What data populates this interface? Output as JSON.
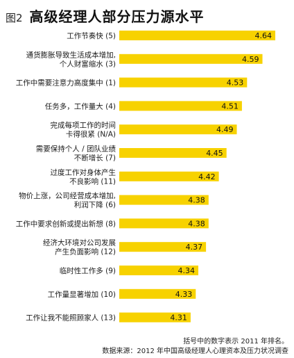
{
  "figure": {
    "label": "图2",
    "title": "高级经理人部分压力源水平"
  },
  "chart_data": {
    "type": "bar",
    "orientation": "horizontal",
    "title": "高级经理人部分压力源水平",
    "bar_color": "#f7d200",
    "categories": [
      {
        "lines": [
          "工作节奏快"
        ],
        "rank": "(5)"
      },
      {
        "lines": [
          "通货膨胀导致生活成本增加,",
          "个人财富缩水"
        ],
        "rank": "(3)"
      },
      {
        "lines": [
          "工作中需要注意力高度集中"
        ],
        "rank": "(1)"
      },
      {
        "lines": [
          "任务多，工作量大"
        ],
        "rank": "(4)"
      },
      {
        "lines": [
          "完成每项工作的时间",
          "卡得很紧"
        ],
        "rank": "(N/A)"
      },
      {
        "lines": [
          "需要保持个人 / 团队业绩",
          "不断增长"
        ],
        "rank": "(7)"
      },
      {
        "lines": [
          "过度工作对身体产生",
          "不良影响"
        ],
        "rank": "(11)"
      },
      {
        "lines": [
          "物价上涨，公司经营成本增加,",
          "利润下降"
        ],
        "rank": "(6)"
      },
      {
        "lines": [
          "工作中要求创新或提出新想"
        ],
        "rank": "(8)"
      },
      {
        "lines": [
          "经济大环境对公司发展",
          "产生负面影响"
        ],
        "rank": "(12)"
      },
      {
        "lines": [
          "临时性工作多"
        ],
        "rank": "(9)"
      },
      {
        "lines": [
          "工作量显著增加"
        ],
        "rank": "(10)"
      },
      {
        "lines": [
          "工作让我不能照顾家人"
        ],
        "rank": "(13)"
      }
    ],
    "values": [
      4.64,
      4.59,
      4.53,
      4.51,
      4.49,
      4.45,
      4.42,
      4.38,
      4.38,
      4.37,
      4.34,
      4.33,
      4.31
    ],
    "value_labels": [
      "4.64",
      "4.59",
      "4.53",
      "4.51",
      "4.49",
      "4.45",
      "4.42",
      "4.38",
      "4.38",
      "4.37",
      "4.34",
      "4.33",
      "4.31"
    ]
  },
  "footnotes": {
    "line1": "括号中的数字表示 2011 年排名。",
    "line2": "数据来源：2012 年中国高级经理人心理资本及压力状况调查"
  }
}
